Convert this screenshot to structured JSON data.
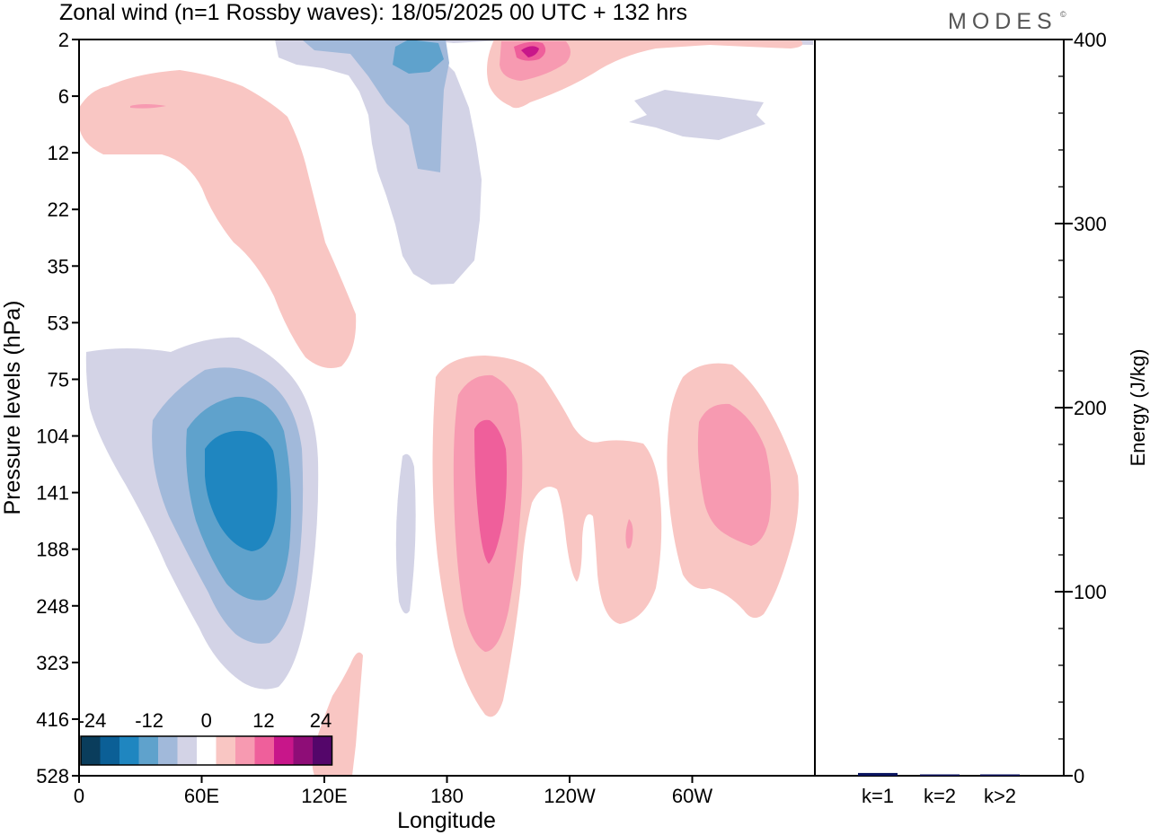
{
  "title": "Zonal wind (n=1 Rossby waves):  18/05/2025  00 UTC  + 132 hrs",
  "logo_text": "MODES",
  "logo_mark": "©",
  "chart_data": [
    {
      "type": "heatmap",
      "subtype": "filled-contour",
      "xlabel": "Longitude",
      "ylabel": "Pressure levels (hPa)",
      "x_tick_labels": [
        "0",
        "60E",
        "120E",
        "180",
        "120W",
        "60W"
      ],
      "x_tick_values_deg": [
        0,
        60,
        120,
        180,
        240,
        300
      ],
      "xlim_deg": [
        0,
        360
      ],
      "y_tick_labels": [
        "2",
        "6",
        "12",
        "22",
        "35",
        "53",
        "75",
        "104",
        "141",
        "188",
        "248",
        "323",
        "416",
        "528"
      ],
      "y_scale": "pressure levels (evenly spaced, top = 2 hPa)",
      "colorbar": {
        "tick_labels": [
          "-24",
          "-12",
          "0",
          "12",
          "24"
        ],
        "colors": [
          "#0a3d5c",
          "#0b5f96",
          "#1f86c0",
          "#5fa2cc",
          "#a1b9da",
          "#d3d3e6",
          "#ffffff",
          "#f9c6c3",
          "#f79ab1",
          "#ef5f9b",
          "#c8168a",
          "#8e0d77",
          "#54066a"
        ]
      },
      "contour_features": [
        {
          "sign": "negative",
          "location": "0-120E, 75-416 hPa",
          "peak": "about -20"
        },
        {
          "sign": "negative",
          "location": "150-190E, 2-35 hPa",
          "peak": "about -16"
        },
        {
          "sign": "negative",
          "location": "150-160E, 104-248 hPa",
          "peak": "about -4"
        },
        {
          "sign": "negative",
          "location": "80-50W, 6-12 hPa",
          "peak": "about -4"
        },
        {
          "sign": "positive",
          "location": "0-125E, 6-75 hPa",
          "peak": "about 8"
        },
        {
          "sign": "positive",
          "location": "170E-95W, 75-416 hPa",
          "peak": "about 16"
        },
        {
          "sign": "positive",
          "location": "60-10W, 75-248 hPa",
          "peak": "about 12"
        },
        {
          "sign": "positive",
          "location": "160-100W, 2-6 hPa",
          "peak": "about 16"
        },
        {
          "sign": "positive",
          "location": "115-135E, 323-528 hPa",
          "peak": "about 4"
        }
      ]
    },
    {
      "type": "bar",
      "ylabel": "Energy (J/kg)",
      "categories": [
        "k=1",
        "k=2",
        "k>2"
      ],
      "values": [
        1.5,
        0.3,
        0.6
      ],
      "ylim": [
        0,
        400
      ],
      "y_tick_labels": [
        "0",
        "100",
        "200",
        "300",
        "400"
      ],
      "bar_color": "#0a1560"
    }
  ]
}
